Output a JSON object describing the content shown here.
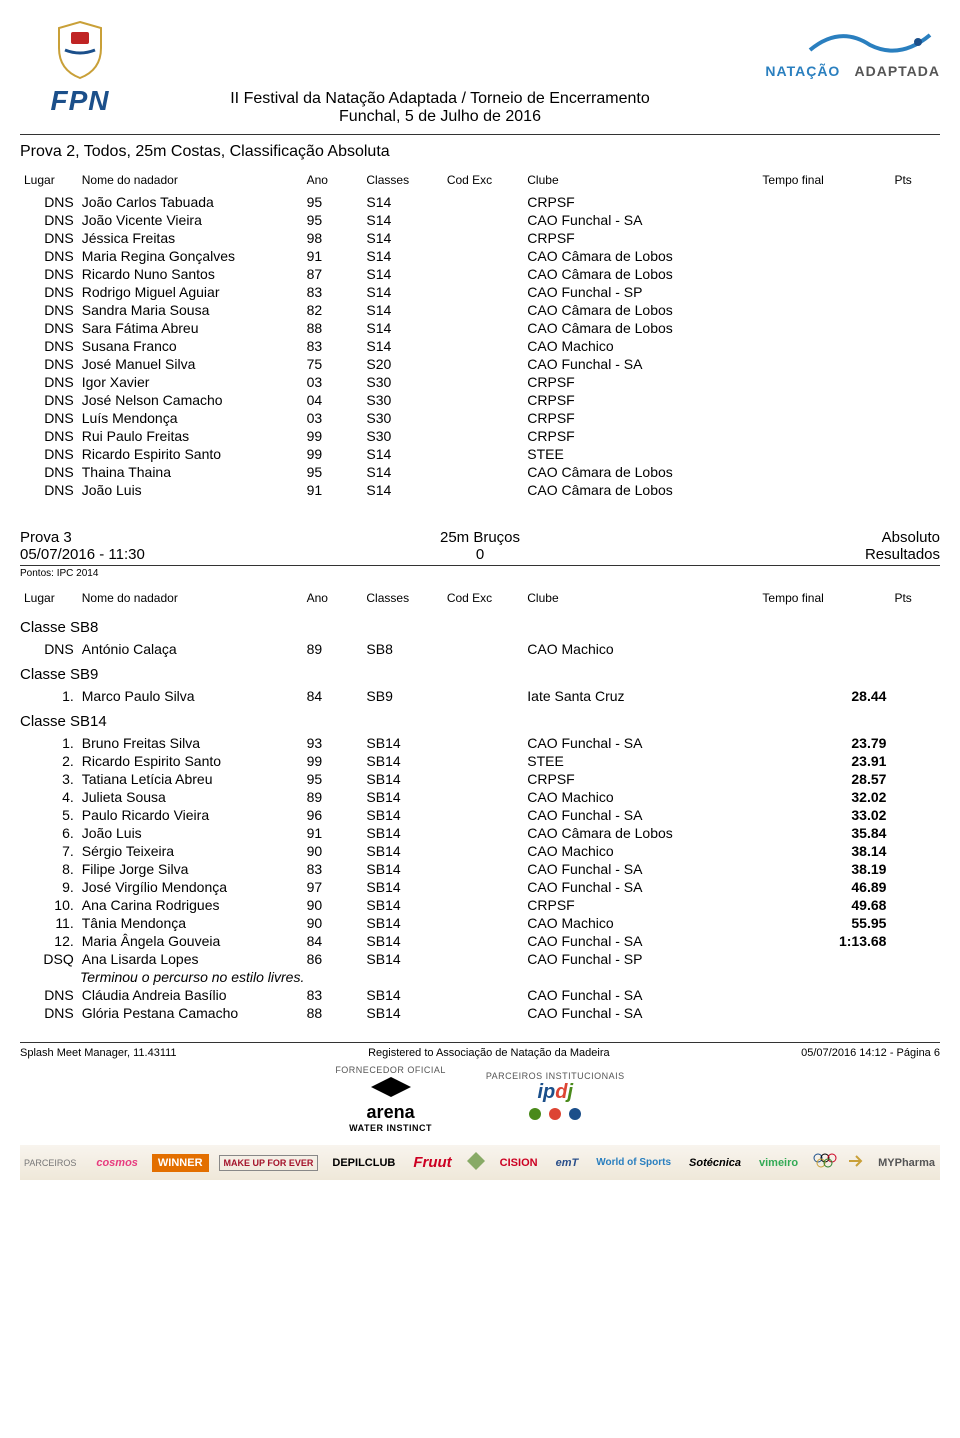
{
  "header": {
    "fpn": "FPN",
    "title_line1": "II Festival da Natação Adaptada / Torneio de Encerramento",
    "title_line2": "Funchal, 5 de Julho de 2016",
    "adaptada_left": "NATAÇÃO",
    "adaptada_right": "ADAPTADA"
  },
  "prova2": {
    "title": "Prova 2, Todos, 25m Costas, Classificação Absoluta",
    "columns": {
      "lugar": "Lugar",
      "nome": "Nome do nadador",
      "ano": "Ano",
      "classes": "Classes",
      "codexc": "Cod Exc",
      "clube": "Clube",
      "tempo": "Tempo final",
      "pts": "Pts"
    },
    "rows": [
      {
        "lugar": "DNS",
        "nome": "João Carlos Tabuada",
        "ano": "95",
        "classes": "S14",
        "clube": "CRPSF"
      },
      {
        "lugar": "DNS",
        "nome": "João Vicente Vieira",
        "ano": "95",
        "classes": "S14",
        "clube": "CAO Funchal - SA"
      },
      {
        "lugar": "DNS",
        "nome": "Jéssica Freitas",
        "ano": "98",
        "classes": "S14",
        "clube": "CRPSF"
      },
      {
        "lugar": "DNS",
        "nome": "Maria Regina Gonçalves",
        "ano": "91",
        "classes": "S14",
        "clube": "CAO Câmara de Lobos"
      },
      {
        "lugar": "DNS",
        "nome": "Ricardo Nuno Santos",
        "ano": "87",
        "classes": "S14",
        "clube": "CAO Câmara de Lobos"
      },
      {
        "lugar": "DNS",
        "nome": "Rodrigo Miguel Aguiar",
        "ano": "83",
        "classes": "S14",
        "clube": "CAO Funchal - SP"
      },
      {
        "lugar": "DNS",
        "nome": "Sandra Maria Sousa",
        "ano": "82",
        "classes": "S14",
        "clube": "CAO Câmara de Lobos"
      },
      {
        "lugar": "DNS",
        "nome": "Sara Fátima Abreu",
        "ano": "88",
        "classes": "S14",
        "clube": "CAO Câmara de Lobos"
      },
      {
        "lugar": "DNS",
        "nome": "Susana Franco",
        "ano": "83",
        "classes": "S14",
        "clube": "CAO Machico"
      },
      {
        "lugar": "DNS",
        "nome": "José Manuel Silva",
        "ano": "75",
        "classes": "S20",
        "clube": "CAO Funchal - SA"
      },
      {
        "lugar": "DNS",
        "nome": "Igor Xavier",
        "ano": "03",
        "classes": "S30",
        "clube": "CRPSF"
      },
      {
        "lugar": "DNS",
        "nome": "José Nelson Camacho",
        "ano": "04",
        "classes": "S30",
        "clube": "CRPSF"
      },
      {
        "lugar": "DNS",
        "nome": "Luís Mendonça",
        "ano": "03",
        "classes": "S30",
        "clube": "CRPSF"
      },
      {
        "lugar": "DNS",
        "nome": "Rui Paulo Freitas",
        "ano": "99",
        "classes": "S30",
        "clube": "CRPSF"
      },
      {
        "lugar": "DNS",
        "nome": "Ricardo Espirito Santo",
        "ano": "99",
        "classes": "S14",
        "clube": "STEE"
      },
      {
        "lugar": "DNS",
        "nome": "Thaina Thaina",
        "ano": "95",
        "classes": "S14",
        "clube": "CAO Câmara de Lobos"
      },
      {
        "lugar": "DNS",
        "nome": "João Luis",
        "ano": "91",
        "classes": "S14",
        "clube": "CAO Câmara de Lobos"
      }
    ]
  },
  "prova3": {
    "meta": {
      "left1": "Prova 3",
      "left2": "05/07/2016 - 11:30",
      "center1": "25m Bruços",
      "center2": "0",
      "right1": "Absoluto",
      "right2": "Resultados"
    },
    "pontos": "Pontos: IPC 2014",
    "columns": {
      "lugar": "Lugar",
      "nome": "Nome do nadador",
      "ano": "Ano",
      "classes": "Classes",
      "codexc": "Cod Exc",
      "clube": "Clube",
      "tempo": "Tempo final",
      "pts": "Pts"
    },
    "groups": [
      {
        "title": "Classe SB8",
        "rows": [
          {
            "lugar": "DNS",
            "nome": "António Calaça",
            "ano": "89",
            "classes": "SB8",
            "clube": "CAO Machico",
            "tempo": ""
          }
        ]
      },
      {
        "title": "Classe SB9",
        "rows": [
          {
            "lugar": "1.",
            "nome": "Marco Paulo Silva",
            "ano": "84",
            "classes": "SB9",
            "clube": "Iate Santa Cruz",
            "tempo": "28.44",
            "bold": true
          }
        ]
      },
      {
        "title": "Classe SB14",
        "rows": [
          {
            "lugar": "1.",
            "nome": "Bruno Freitas Silva",
            "ano": "93",
            "classes": "SB14",
            "clube": "CAO Funchal - SA",
            "tempo": "23.79",
            "bold": true
          },
          {
            "lugar": "2.",
            "nome": "Ricardo Espirito Santo",
            "ano": "99",
            "classes": "SB14",
            "clube": "STEE",
            "tempo": "23.91",
            "bold": true
          },
          {
            "lugar": "3.",
            "nome": "Tatiana Letícia Abreu",
            "ano": "95",
            "classes": "SB14",
            "clube": "CRPSF",
            "tempo": "28.57",
            "bold": true
          },
          {
            "lugar": "4.",
            "nome": "Julieta Sousa",
            "ano": "89",
            "classes": "SB14",
            "clube": "CAO Machico",
            "tempo": "32.02",
            "bold": true
          },
          {
            "lugar": "5.",
            "nome": "Paulo Ricardo Vieira",
            "ano": "96",
            "classes": "SB14",
            "clube": "CAO Funchal - SA",
            "tempo": "33.02",
            "bold": true
          },
          {
            "lugar": "6.",
            "nome": "João Luis",
            "ano": "91",
            "classes": "SB14",
            "clube": "CAO Câmara de Lobos",
            "tempo": "35.84",
            "bold": true
          },
          {
            "lugar": "7.",
            "nome": "Sérgio Teixeira",
            "ano": "90",
            "classes": "SB14",
            "clube": "CAO Machico",
            "tempo": "38.14",
            "bold": true
          },
          {
            "lugar": "8.",
            "nome": "Filipe Jorge Silva",
            "ano": "83",
            "classes": "SB14",
            "clube": "CAO Funchal - SA",
            "tempo": "38.19",
            "bold": true
          },
          {
            "lugar": "9.",
            "nome": "José Virgílio Mendonça",
            "ano": "97",
            "classes": "SB14",
            "clube": "CAO Funchal - SA",
            "tempo": "46.89",
            "bold": true
          },
          {
            "lugar": "10.",
            "nome": "Ana Carina Rodrigues",
            "ano": "90",
            "classes": "SB14",
            "clube": "CRPSF",
            "tempo": "49.68",
            "bold": true
          },
          {
            "lugar": "11.",
            "nome": "Tânia Mendonça",
            "ano": "90",
            "classes": "SB14",
            "clube": "CAO Machico",
            "tempo": "55.95",
            "bold": true
          },
          {
            "lugar": "12.",
            "nome": "Maria Ângela Gouveia",
            "ano": "84",
            "classes": "SB14",
            "clube": "CAO Funchal - SA",
            "tempo": "1:13.68",
            "bold": true
          },
          {
            "lugar": "DSQ",
            "nome": "Ana Lisarda Lopes",
            "ano": "86",
            "classes": "SB14",
            "clube": "CAO Funchal - SP",
            "tempo": ""
          },
          {
            "note": "Terminou o percurso no estilo livres."
          },
          {
            "lugar": "DNS",
            "nome": "Cláudia Andreia Basílio",
            "ano": "83",
            "classes": "SB14",
            "clube": "CAO Funchal - SA",
            "tempo": ""
          },
          {
            "lugar": "DNS",
            "nome": "Glória Pestana Camacho",
            "ano": "88",
            "classes": "SB14",
            "clube": "CAO Funchal - SA",
            "tempo": ""
          }
        ]
      }
    ]
  },
  "footer": {
    "left": "Splash Meet Manager, 11.43111",
    "center": "Registered to Associação de Natação da Madeira",
    "right": "05/07/2016 14:12 - Página 6",
    "forn_label": "FORNECEDOR OFICIAL",
    "parc_label": "PARCEIROS INSTITUCIONAIS",
    "arena": "arena",
    "arena_sub": "WATER INSTINCT",
    "partners_label": "PARCEIROS",
    "partners": [
      "cosmos",
      "WINNER",
      "MAKE UP FOR EVER",
      "DEPILCLUB",
      "Fruut",
      "CISION",
      "emT",
      "World of Sports",
      "Sotécnica",
      "vimeiro",
      "",
      "MYPharma"
    ]
  }
}
